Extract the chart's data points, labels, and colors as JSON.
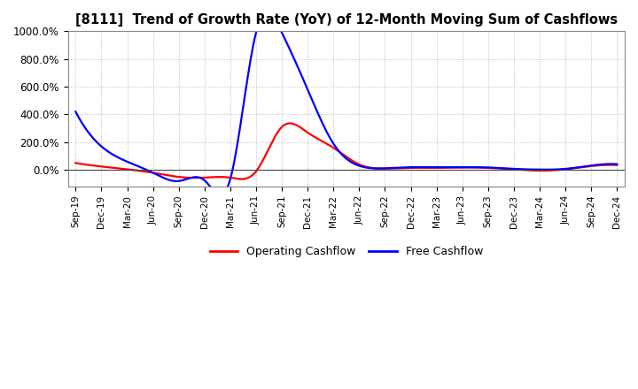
{
  "title": "[8111]  Trend of Growth Rate (YoY) of 12-Month Moving Sum of Cashflows",
  "background_color": "#ffffff",
  "grid_color": "#bbbbbb",
  "legend_labels": [
    "Operating Cashflow",
    "Free Cashflow"
  ],
  "legend_colors": [
    "#ff0000",
    "#0000ff"
  ],
  "ylim": [
    -120,
    1000
  ],
  "yticks": [
    0,
    200,
    400,
    600,
    800,
    1000
  ],
  "ytick_labels": [
    "0.0%",
    "200.0%",
    "400.0%",
    "600.0%",
    "800.0%",
    "1000.0%"
  ],
  "operating_cashflow": [
    50,
    25,
    5,
    -20,
    -50,
    -55,
    -55,
    -10,
    310,
    270,
    160,
    40,
    10,
    15,
    15,
    18,
    15,
    5,
    -5,
    5,
    28,
    35
  ],
  "free_cashflow": [
    420,
    170,
    60,
    -20,
    -80,
    -75,
    -65,
    990,
    990,
    580,
    190,
    30,
    12,
    20,
    20,
    20,
    18,
    8,
    3,
    8,
    32,
    42
  ],
  "xtick_labels": [
    "Sep-19",
    "Dec-19",
    "Mar-20",
    "Jun-20",
    "Sep-20",
    "Dec-20",
    "Mar-21",
    "Jun-21",
    "Sep-21",
    "Dec-21",
    "Mar-22",
    "Jun-22",
    "Sep-22",
    "Dec-22",
    "Mar-23",
    "Jun-23",
    "Sep-23",
    "Dec-23",
    "Mar-24",
    "Jun-24",
    "Sep-24",
    "Dec-24"
  ]
}
